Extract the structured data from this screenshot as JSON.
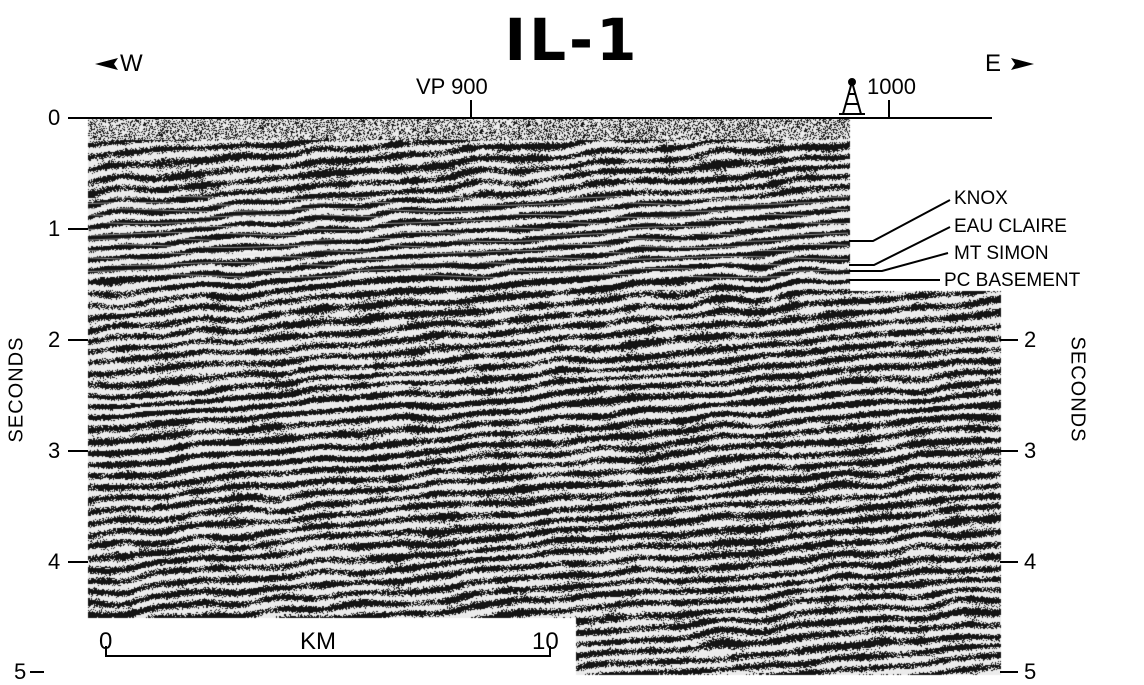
{
  "title": "IL-1",
  "directions": {
    "west": "W",
    "east": "E"
  },
  "vp_labels": [
    "VP 900",
    "1000"
  ],
  "time_axis": {
    "left_title": "SECONDS",
    "right_title": "SECONDS",
    "left_ticks": [
      "0",
      "1",
      "2",
      "3",
      "4",
      "5"
    ],
    "right_ticks": [
      "2",
      "3",
      "4",
      "5"
    ]
  },
  "horizons": [
    "KNOX",
    "EAU  CLAIRE",
    "MT SIMON",
    "PC BASEMENT"
  ],
  "scale_bar": {
    "start": "0",
    "unit": "KM",
    "end": "10"
  },
  "icons": {
    "well": "drilling-rig-icon",
    "west_arrow": "arrow-left-icon",
    "east_arrow": "arrow-right-icon"
  }
}
